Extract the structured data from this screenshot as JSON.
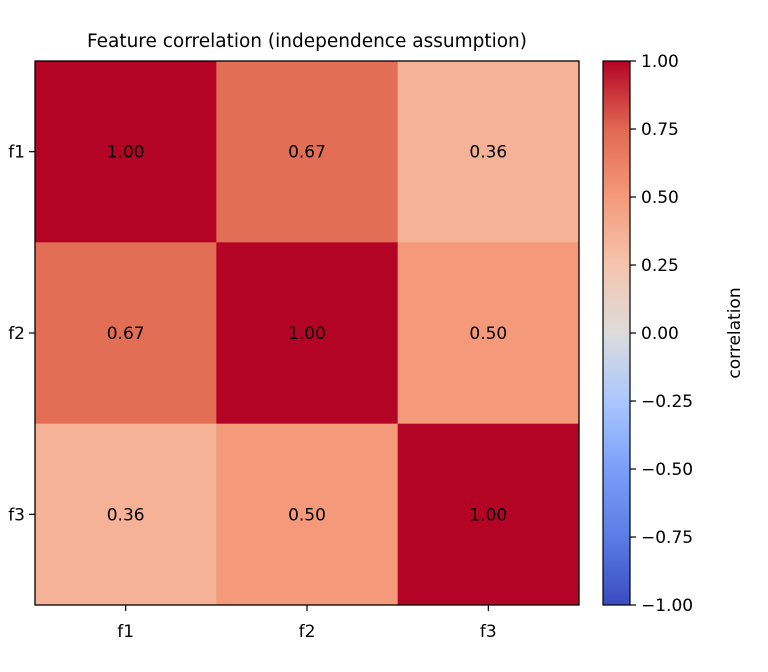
{
  "chart_data": {
    "type": "heatmap",
    "title": "Feature correlation (independence assumption)",
    "x_categories": [
      "f1",
      "f2",
      "f3"
    ],
    "y_categories": [
      "f1",
      "f2",
      "f3"
    ],
    "values": [
      [
        1.0,
        0.67,
        0.36
      ],
      [
        0.67,
        1.0,
        0.5
      ],
      [
        0.36,
        0.5,
        1.0
      ]
    ],
    "cell_labels": [
      [
        "1.00",
        "0.67",
        "0.36"
      ],
      [
        "0.67",
        "1.00",
        "0.50"
      ],
      [
        "0.36",
        "0.50",
        "1.00"
      ]
    ],
    "colorbar": {
      "label": "correlation",
      "range": [
        -1.0,
        1.0
      ],
      "colormap": "coolwarm",
      "tick_values": [
        1.0,
        0.75,
        0.5,
        0.25,
        0.0,
        -0.25,
        -0.5,
        -0.75,
        -1.0
      ],
      "tick_labels": [
        "1.00",
        "0.75",
        "0.50",
        "0.25",
        "0.00",
        "−0.25",
        "−0.50",
        "−0.75",
        "−1.00"
      ]
    },
    "colors": {
      "high": "#b40426",
      "mid": "#dddcdc",
      "low": "#3b4cc0"
    }
  }
}
